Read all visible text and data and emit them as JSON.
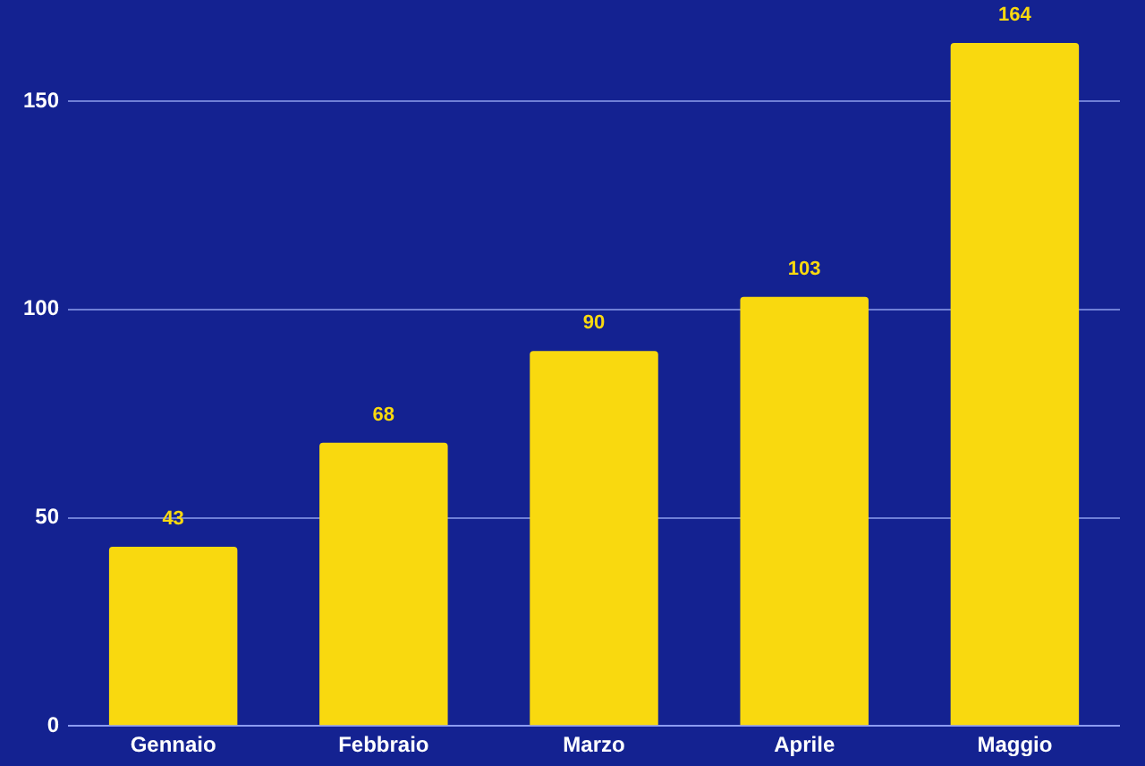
{
  "chart_data": {
    "type": "bar",
    "categories": [
      "Gennaio",
      "Febbraio",
      "Marzo",
      "Aprile",
      "Maggio"
    ],
    "values": [
      43,
      68,
      90,
      103,
      164
    ],
    "color": "#f9d90f",
    "ylim": [
      0,
      164
    ],
    "yticks": [
      0,
      50,
      100,
      150
    ],
    "grid": "y",
    "data_labels": true
  }
}
